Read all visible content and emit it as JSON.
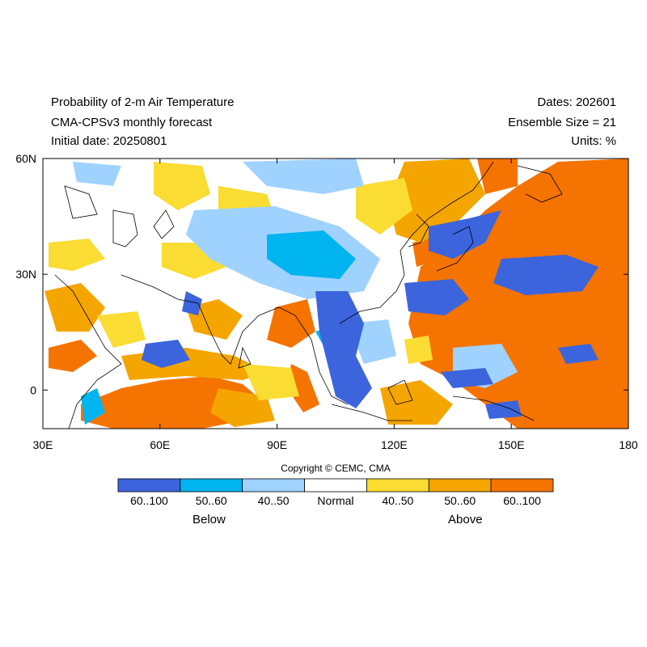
{
  "header": {
    "title": "Probability of 2-m Air Temperature",
    "model": "CMA-CPSv3 monthly forecast",
    "initial": "Initial date: 20250801",
    "dates": "Dates: 202601",
    "ensemble": "Ensemble Size = 21",
    "units": "Units: %"
  },
  "map": {
    "lon_range": [
      30,
      180
    ],
    "lat_range": [
      -10,
      60
    ],
    "lon_ticks": [
      {
        "value": 30,
        "label": "30E"
      },
      {
        "value": 60,
        "label": "60E"
      },
      {
        "value": 90,
        "label": "90E"
      },
      {
        "value": 120,
        "label": "120E"
      },
      {
        "value": 150,
        "label": "150E"
      },
      {
        "value": 180,
        "label": "180"
      }
    ],
    "lat_ticks": [
      {
        "value": 60,
        "label": "60N"
      },
      {
        "value": 30,
        "label": "30N"
      },
      {
        "value": 0,
        "label": "0"
      }
    ]
  },
  "copyright": "Copyright © CEMC, CMA",
  "colorbar": {
    "bins": [
      {
        "label": "60..100",
        "color": "#3c64dc"
      },
      {
        "label": "50..60",
        "color": "#00b4f0"
      },
      {
        "label": "40..50",
        "color": "#a0d2ff"
      },
      {
        "label": "Normal",
        "color": "#ffffff"
      },
      {
        "label": "40..50",
        "color": "#fadc32"
      },
      {
        "label": "50..60",
        "color": "#f5a500"
      },
      {
        "label": "60..100",
        "color": "#f57300"
      }
    ],
    "below_label": "Below",
    "above_label": "Above"
  }
}
